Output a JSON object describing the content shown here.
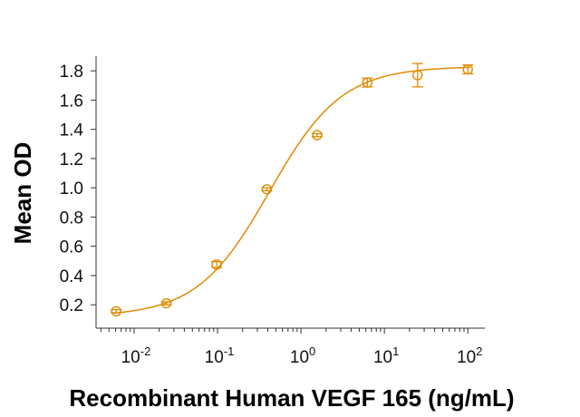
{
  "chart_data": {
    "type": "scatter",
    "title": "",
    "xlabel": "Recombinant Human VEGF 165 (ng/mL)",
    "ylabel": "Mean OD",
    "x_scale": "log",
    "xlim": [
      0.0035,
      160
    ],
    "ylim": [
      0.04,
      1.9
    ],
    "x_ticks": [
      0.01,
      0.1,
      1,
      10,
      100
    ],
    "x_tick_labels": [
      {
        "base": "10",
        "exp": "-2"
      },
      {
        "base": "10",
        "exp": "-1"
      },
      {
        "base": "10",
        "exp": "0"
      },
      {
        "base": "10",
        "exp": "1"
      },
      {
        "base": "10",
        "exp": "2"
      }
    ],
    "y_ticks": [
      0.2,
      0.4,
      0.6,
      0.8,
      1.0,
      1.2,
      1.4,
      1.6,
      1.8
    ],
    "y_tick_labels": [
      "0.2",
      "0.4",
      "0.6",
      "0.8",
      "1.0",
      "1.2",
      "1.4",
      "1.6",
      "1.8"
    ],
    "grid": false,
    "color": "#E08A00",
    "series": [
      {
        "x": [
          0.0061,
          0.0244,
          0.0977,
          0.39,
          1.5625,
          6.25,
          25,
          100
        ],
        "y": [
          0.156,
          0.21,
          0.475,
          0.99,
          1.36,
          1.72,
          1.77,
          1.81
        ],
        "error": [
          0.01,
          0.01,
          0.02,
          0.01,
          0.01,
          0.03,
          0.08,
          0.03
        ]
      }
    ],
    "fit_curve": "four-parameter logistic"
  }
}
